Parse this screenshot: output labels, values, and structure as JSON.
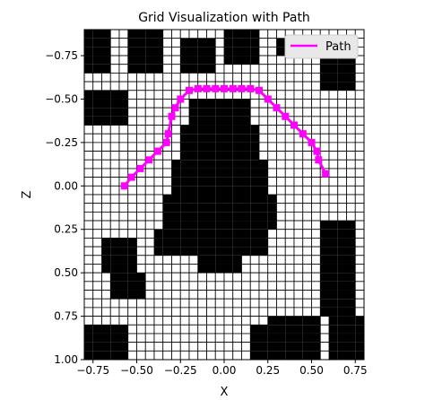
{
  "chart_data": {
    "type": "heatmap",
    "title": "Grid Visualization with Path",
    "xlabel": "X",
    "ylabel": "Z",
    "xlim": [
      -0.8,
      0.8
    ],
    "ylim": [
      1.0,
      -0.9
    ],
    "y_inverted": true,
    "cell_size": 0.05,
    "xticks": [
      -0.75,
      -0.5,
      -0.25,
      0.0,
      0.25,
      0.5,
      0.75
    ],
    "xtick_labels": [
      "−0.75",
      "−0.50",
      "−0.25",
      "0.00",
      "0.25",
      "0.50",
      "0.75"
    ],
    "yticks": [
      -0.75,
      -0.5,
      -0.25,
      0.0,
      0.25,
      0.5,
      0.75,
      1.0
    ],
    "ytick_labels": [
      "−0.75",
      "−0.50",
      "−0.25",
      "0.00",
      "0.25",
      "0.50",
      "0.75",
      "1.00"
    ],
    "legend": {
      "position": "top-right",
      "entries": [
        {
          "name": "Path",
          "color": "#ff00ff"
        }
      ]
    },
    "colors": {
      "occupied": "#000000",
      "free": "#ffffff",
      "path": "#ff00ff"
    },
    "obstacles": [
      {
        "x": [
          -0.8,
          -0.65
        ],
        "z": [
          -0.9,
          -0.65
        ]
      },
      {
        "x": [
          -0.55,
          -0.35
        ],
        "z": [
          -0.9,
          -0.65
        ]
      },
      {
        "x": [
          -0.25,
          -0.05
        ],
        "z": [
          -0.85,
          -0.65
        ]
      },
      {
        "x": [
          0.0,
          0.2
        ],
        "z": [
          -0.9,
          -0.7
        ]
      },
      {
        "x": [
          0.3,
          0.45
        ],
        "z": [
          -0.85,
          -0.75
        ]
      },
      {
        "x": [
          0.55,
          0.75
        ],
        "z": [
          -0.75,
          -0.55
        ]
      },
      {
        "x": [
          -0.8,
          -0.55
        ],
        "z": [
          -0.55,
          -0.35
        ]
      },
      {
        "x": [
          -0.2,
          0.15
        ],
        "z": [
          -0.5,
          -0.35
        ]
      },
      {
        "x": [
          -0.25,
          0.2
        ],
        "z": [
          -0.35,
          -0.15
        ]
      },
      {
        "x": [
          -0.3,
          0.25
        ],
        "z": [
          -0.15,
          0.25
        ]
      },
      {
        "x": [
          -0.35,
          0.3
        ],
        "z": [
          0.05,
          0.25
        ]
      },
      {
        "x": [
          -0.4,
          0.25
        ],
        "z": [
          0.25,
          0.4
        ]
      },
      {
        "x": [
          -0.15,
          0.1
        ],
        "z": [
          0.4,
          0.5
        ]
      },
      {
        "x": [
          -0.7,
          -0.5
        ],
        "z": [
          0.3,
          0.5
        ]
      },
      {
        "x": [
          -0.65,
          -0.45
        ],
        "z": [
          0.5,
          0.65
        ]
      },
      {
        "x": [
          0.55,
          0.75
        ],
        "z": [
          0.2,
          0.75
        ]
      },
      {
        "x": [
          0.6,
          0.8
        ],
        "z": [
          0.75,
          1.0
        ]
      },
      {
        "x": [
          0.25,
          0.55
        ],
        "z": [
          0.75,
          1.0
        ]
      },
      {
        "x": [
          0.15,
          0.25
        ],
        "z": [
          0.8,
          1.0
        ]
      },
      {
        "x": [
          -0.8,
          -0.55
        ],
        "z": [
          0.8,
          1.0
        ]
      }
    ],
    "series": [
      {
        "name": "Path",
        "x": [
          -0.57,
          -0.53,
          -0.48,
          -0.43,
          -0.38,
          -0.33,
          -0.32,
          -0.3,
          -0.28,
          -0.25,
          -0.2,
          -0.15,
          -0.1,
          -0.05,
          0.0,
          0.05,
          0.1,
          0.15,
          0.2,
          0.25,
          0.3,
          0.35,
          0.4,
          0.45,
          0.5,
          0.53,
          0.54,
          0.58
        ],
        "z": [
          0.0,
          -0.05,
          -0.1,
          -0.15,
          -0.2,
          -0.25,
          -0.3,
          -0.4,
          -0.45,
          -0.5,
          -0.55,
          -0.56,
          -0.56,
          -0.56,
          -0.56,
          -0.56,
          -0.56,
          -0.56,
          -0.55,
          -0.5,
          -0.45,
          -0.4,
          -0.35,
          -0.3,
          -0.25,
          -0.2,
          -0.15,
          -0.07
        ]
      }
    ]
  }
}
